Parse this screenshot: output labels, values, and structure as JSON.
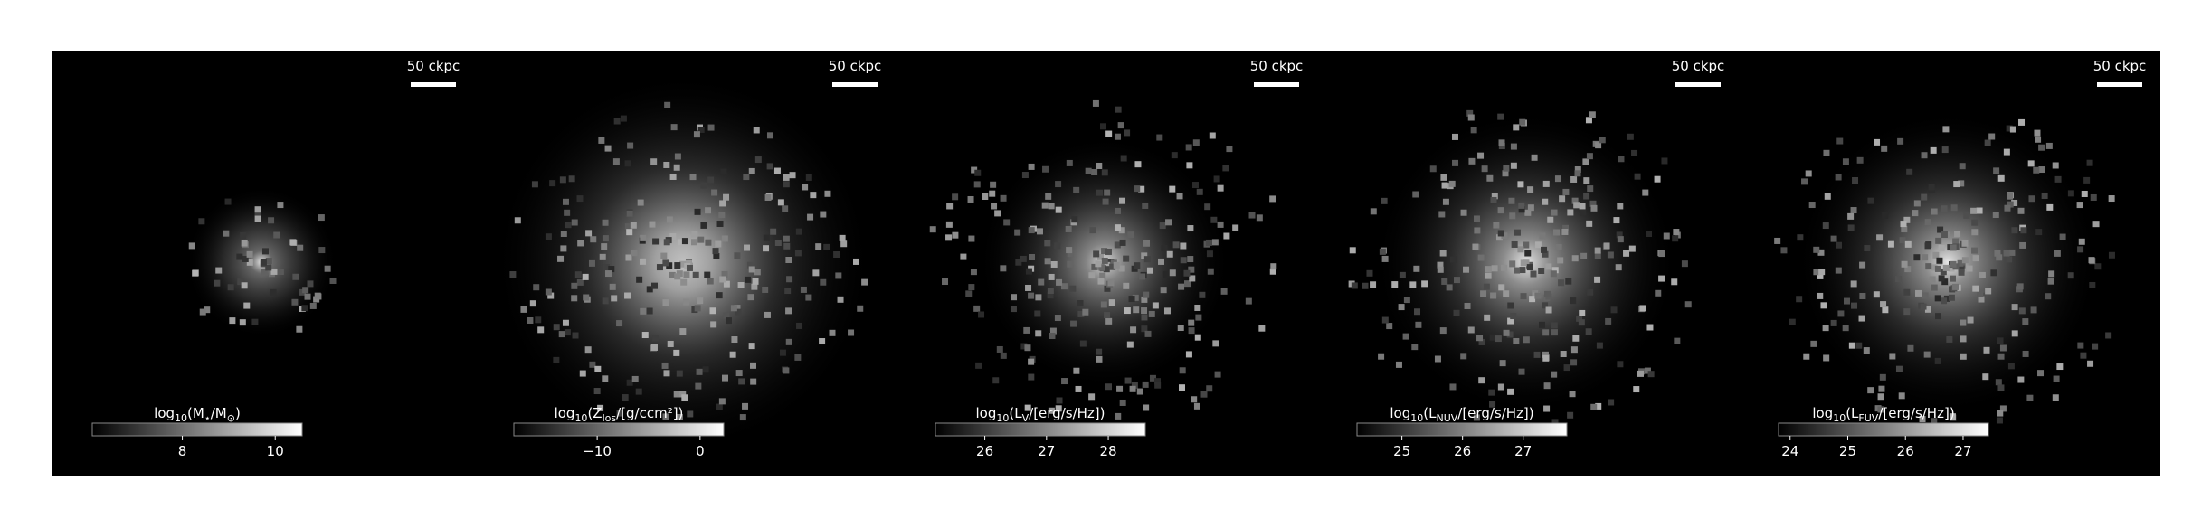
{
  "panels": [
    {
      "scale_bar_label": "50 ckpc",
      "colorbar": {
        "label": [
          {
            "text": "log"
          },
          {
            "text": "10",
            "sub": true
          },
          {
            "text": "(M"
          },
          {
            "text": "⋆",
            "sub": true
          },
          {
            "text": "/M"
          },
          {
            "text": "⊙",
            "sub": true
          },
          {
            "text": ")"
          }
        ],
        "lim": [
          6.06,
          10.58
        ],
        "ticks": [
          8,
          10
        ]
      }
    },
    {
      "scale_bar_label": "50 ckpc",
      "colorbar": {
        "label": [
          {
            "text": "log"
          },
          {
            "text": "10",
            "sub": true
          },
          {
            "text": "(Z"
          },
          {
            "text": "los",
            "sub": true
          },
          {
            "text": "/[g/ccm²])"
          }
        ],
        "lim": [
          -18.1,
          2.3
        ],
        "ticks": [
          {
            "value": -10,
            "label": "−10"
          },
          0
        ]
      }
    },
    {
      "scale_bar_label": "50 ckpc",
      "colorbar": {
        "label": [
          {
            "text": "log"
          },
          {
            "text": "10",
            "sub": true
          },
          {
            "text": "(L"
          },
          {
            "text": "V",
            "sub": true
          },
          {
            "text": "/[erg/s/Hz])"
          }
        ],
        "lim": [
          25.2,
          28.6
        ],
        "ticks": [
          26,
          27,
          28
        ]
      }
    },
    {
      "scale_bar_label": "50 ckpc",
      "colorbar": {
        "label": [
          {
            "text": "log"
          },
          {
            "text": "10",
            "sub": true
          },
          {
            "text": "(L"
          },
          {
            "text": "NUV",
            "sub": true
          },
          {
            "text": "/[erg/s/Hz])"
          }
        ],
        "lim": [
          24.26,
          27.72
        ],
        "ticks": [
          25,
          26,
          27
        ]
      }
    },
    {
      "scale_bar_label": "50 ckpc",
      "colorbar": {
        "label": [
          {
            "text": "log"
          },
          {
            "text": "10",
            "sub": true
          },
          {
            "text": "(L"
          },
          {
            "text": "FUV",
            "sub": true
          },
          {
            "text": "/[erg/s/Hz])"
          }
        ],
        "lim": [
          23.8,
          27.44
        ],
        "ticks": [
          24,
          25,
          26,
          27
        ]
      }
    }
  ]
}
